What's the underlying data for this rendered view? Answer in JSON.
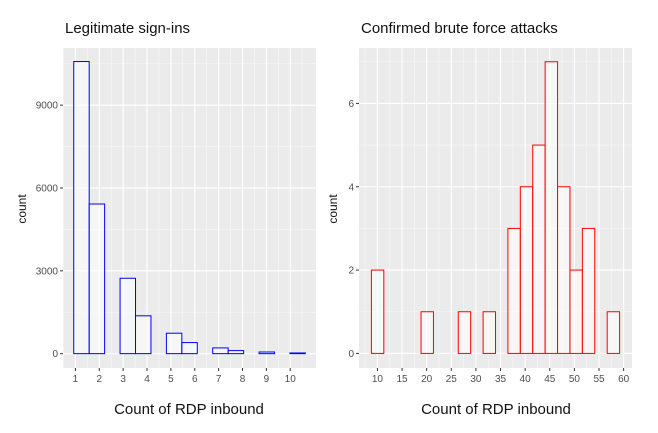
{
  "chart_data": [
    {
      "type": "bar",
      "title": "Legitimate sign-ins",
      "xlabel": "Count of RDP inbound",
      "ylabel": "count",
      "color": "#0000ff",
      "bins": {
        "start": 0.93,
        "width": 0.647
      },
      "values": [
        10580,
        5420,
        0,
        2730,
        1370,
        0,
        740,
        400,
        0,
        207,
        110,
        0,
        60,
        0,
        25
      ],
      "xlim": [
        0.48,
        11.08
      ],
      "ylim": [
        -520,
        11070
      ],
      "xticks": [
        1,
        2,
        3,
        4,
        5,
        6,
        7,
        8,
        9,
        10
      ],
      "xminor": [
        0.5,
        1.5,
        2.5,
        3.5,
        4.5,
        5.5,
        6.5,
        7.5,
        8.5,
        9.5,
        10.5
      ],
      "yticks": [
        0,
        3000,
        6000,
        9000
      ],
      "yminor": [
        1500,
        4500,
        7500,
        10500
      ],
      "grid": true
    },
    {
      "type": "bar",
      "title": "Confirmed brute force attacks",
      "xlabel": "Count of RDP inbound",
      "ylabel": "count",
      "color": "#ff0000",
      "bins": {
        "start": 8.78,
        "width": 2.52
      },
      "values": [
        2,
        0,
        0,
        0,
        1,
        0,
        0,
        1,
        0,
        1,
        0,
        3,
        4,
        5,
        7,
        4,
        2,
        3,
        0,
        1
      ],
      "xlim": [
        6.26,
        61.7
      ],
      "ylim": [
        -0.35,
        7.33
      ],
      "xticks": [
        10,
        15,
        20,
        25,
        30,
        35,
        40,
        45,
        50,
        55,
        60
      ],
      "xminor": [
        7.5,
        12.5,
        17.5,
        22.5,
        27.5,
        32.5,
        37.5,
        42.5,
        47.5,
        52.5,
        57.5
      ],
      "yticks": [
        0,
        2,
        4,
        6
      ],
      "yminor": [
        1,
        3,
        5,
        7
      ],
      "grid": true
    }
  ]
}
